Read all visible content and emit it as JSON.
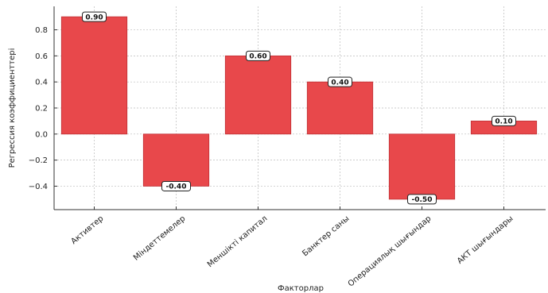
{
  "chart_data": {
    "type": "bar",
    "title": "",
    "xlabel": "Факторлар",
    "ylabel": "Регрессия коэффициенттері",
    "categories": [
      "Активтер",
      "Міндеттемелер",
      "Меншікті капитал",
      "Банктер саны",
      "Операциялық шығындар",
      "АКТ шығындары"
    ],
    "values": [
      0.9,
      -0.4,
      0.6,
      0.4,
      -0.5,
      0.1
    ],
    "data_labels": [
      "0.90",
      "-0.40",
      "0.60",
      "0.40",
      "-0.50",
      "0.10"
    ],
    "yticks": [
      -0.4,
      -0.2,
      0.0,
      0.2,
      0.4,
      0.6,
      0.8
    ],
    "ytick_labels": [
      "−0.4",
      "−0.2",
      "0.0",
      "0.2",
      "0.4",
      "0.6",
      "0.8"
    ],
    "ylim": [
      -0.58,
      0.98
    ],
    "grid": true,
    "bar_color": "#e8484b",
    "bar_edge_color": "#c03035"
  }
}
